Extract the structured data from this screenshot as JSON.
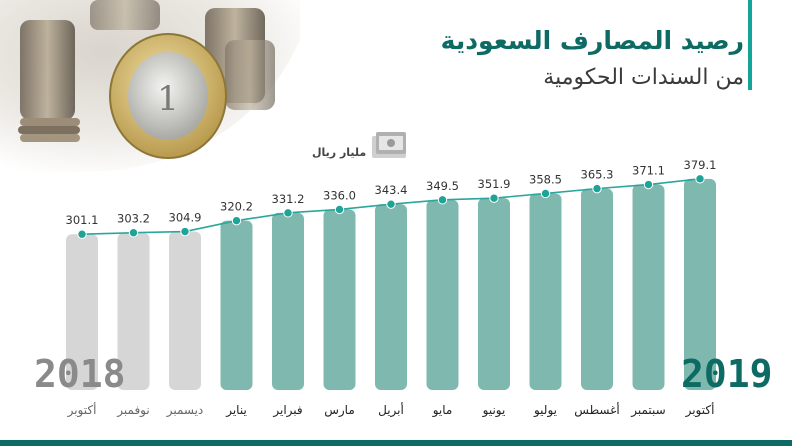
{
  "title": {
    "line1": "رصيد المصارف السعودية",
    "line2": "من السندات الحكومية"
  },
  "unit_label": "مليار ريال",
  "years": {
    "left": "2018",
    "right": "2019"
  },
  "colors": {
    "accent": "#14a59a",
    "dark_teal": "#0d6b63",
    "bar_2019": "#7fb8ae",
    "bar_2018": "#d6d6d6",
    "line": "#2aa79c",
    "point": "#1fa396"
  },
  "chart_data": {
    "type": "bar",
    "categories": [
      "أكتوبر",
      "نوفمبر",
      "ديسمبر",
      "يناير",
      "فبراير",
      "مارس",
      "أبريل",
      "مايو",
      "يونيو",
      "يوليو",
      "أغسطس",
      "سبتمبر",
      "أكتوبر"
    ],
    "year_of_category": [
      "2018",
      "2018",
      "2018",
      "2019",
      "2019",
      "2019",
      "2019",
      "2019",
      "2019",
      "2019",
      "2019",
      "2019",
      "2019"
    ],
    "values": [
      301.1,
      303.2,
      304.9,
      320.2,
      331.2,
      336.0,
      343.4,
      349.5,
      351.9,
      358.5,
      365.3,
      371.1,
      379.1
    ],
    "value_labels": [
      "301.1",
      "303.2",
      "304.9",
      "320.2",
      "331.2",
      "336.0",
      "343.4",
      "349.5",
      "351.9",
      "358.5",
      "365.3",
      "371.1",
      "379.1"
    ],
    "overlay": "line",
    "title": "",
    "xlabel": "",
    "ylabel": "",
    "grid": false
  }
}
